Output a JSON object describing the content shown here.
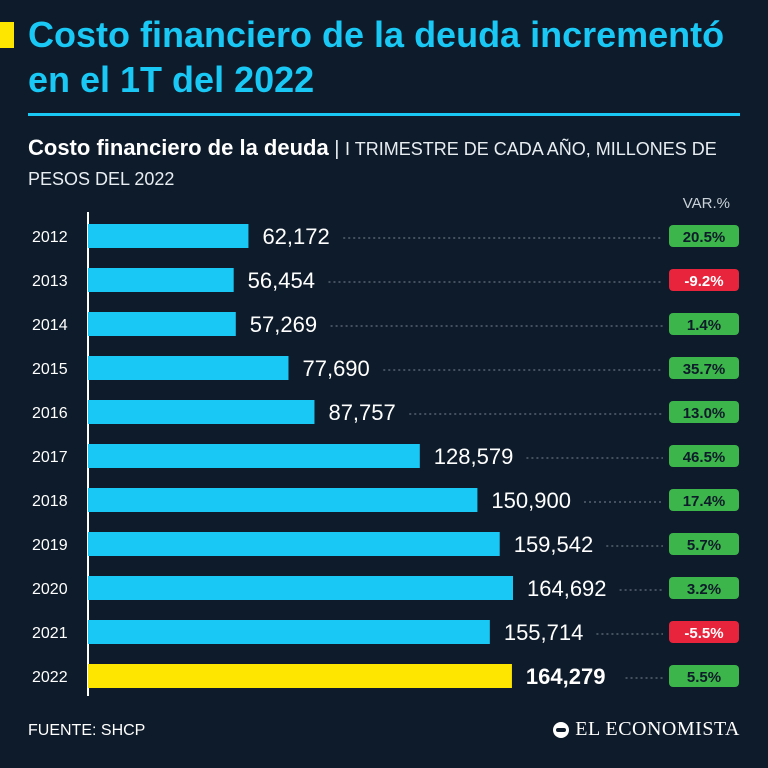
{
  "headline": "Costo financiero de la deuda incrementó en el 1T del 2022",
  "subtitle": {
    "bold": "Costo financiero de la deuda",
    "separator": "|",
    "rest": "I TRIMESTRE DE CADA AÑO, MILLONES DE PESOS DEL 2022"
  },
  "source": "FUENTE: SHCP",
  "brand": "EL ECONOMISTA",
  "colors": {
    "bar": "#19c8f5",
    "highlight": "#ffe600",
    "positive": "#3cb54a",
    "negative": "#e8243c",
    "background": "#0e1b2a",
    "accent": "#19c8f5"
  },
  "chart_data": {
    "type": "bar",
    "orientation": "horizontal",
    "title": "Costo financiero de la deuda",
    "subtitle": "I TRIMESTRE DE CADA AÑO, MILLONES DE PESOS DEL 2022",
    "change_header": "VAR.%",
    "categories": [
      "2012",
      "2013",
      "2014",
      "2015",
      "2016",
      "2017",
      "2018",
      "2019",
      "2020",
      "2021",
      "2022"
    ],
    "values": [
      62172,
      56454,
      57269,
      77690,
      87757,
      128579,
      150900,
      159542,
      164692,
      155714,
      164279
    ],
    "value_labels": [
      "62,172",
      "56,454",
      "57,269",
      "77,690",
      "87,757",
      "128,579",
      "150,900",
      "159,542",
      "164,692",
      "155,714",
      "164,279"
    ],
    "changes": [
      "20.5%",
      "-9.2%",
      "1.4%",
      "35.7%",
      "13.0%",
      "46.5%",
      "17.4%",
      "5.7%",
      "3.2%",
      "-5.5%",
      "5.5%"
    ],
    "change_values": [
      20.5,
      -9.2,
      1.4,
      35.7,
      13.0,
      46.5,
      17.4,
      5.7,
      3.2,
      -5.5,
      5.5
    ],
    "highlight_category": "2022",
    "xlim": [
      0,
      164692
    ]
  }
}
